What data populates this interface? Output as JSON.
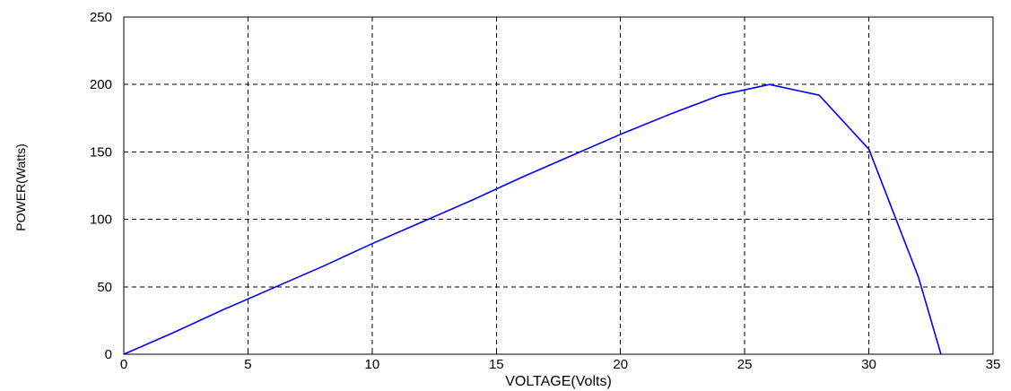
{
  "chart_data": {
    "type": "line",
    "title": "",
    "xlabel": "VOLTAGE(Volts)",
    "ylabel": "POWER(Watts)",
    "xlim": [
      0,
      35
    ],
    "ylim": [
      0,
      250
    ],
    "x_ticks": [
      "0",
      "5",
      "10",
      "15",
      "20",
      "25",
      "30",
      "35"
    ],
    "y_ticks": [
      "0",
      "50",
      "100",
      "150",
      "200",
      "250"
    ],
    "grid": true,
    "line_color": "#0000ff",
    "series": [
      {
        "x": [
          0,
          2,
          4,
          6,
          8,
          10,
          12,
          14,
          16,
          18,
          20,
          22,
          24,
          26,
          28,
          30,
          32,
          32.9
        ],
        "y": [
          0,
          16,
          33,
          49,
          65,
          82,
          98,
          114,
          131,
          147,
          163,
          178,
          192,
          200,
          192,
          152,
          57,
          0
        ]
      }
    ]
  }
}
